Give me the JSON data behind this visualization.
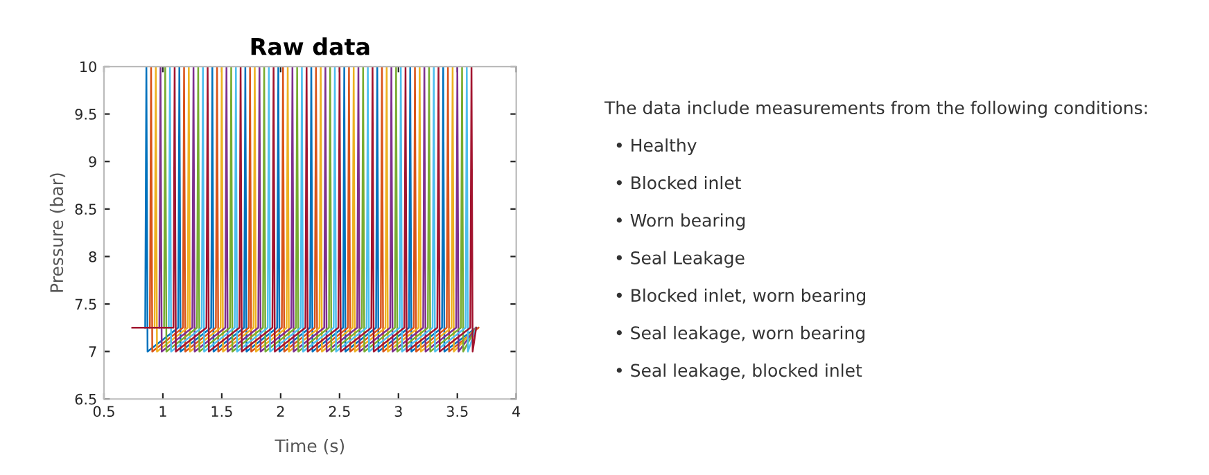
{
  "chart_data": {
    "type": "line",
    "title": "Raw data",
    "xlabel": "Time (s)",
    "ylabel": "Pressure (bar)",
    "xlim": [
      0.5,
      4
    ],
    "xticks": [
      0.5,
      1,
      1.5,
      2,
      2.5,
      3,
      3.5,
      4
    ],
    "ylim": [
      6.5,
      10
    ],
    "yticks": [
      6.5,
      7,
      7.5,
      8,
      8.5,
      9,
      9.5,
      10
    ],
    "grid": false,
    "legend": false,
    "series": [
      {
        "color": "#0072bd",
        "x": [
          0.85,
          0.86,
          0.87,
          1.13,
          1.14,
          1.15,
          1.41,
          1.42,
          1.43,
          1.69,
          1.7,
          1.71,
          1.97,
          1.98,
          1.99,
          2.25,
          2.26,
          2.27,
          2.53,
          2.54,
          2.55,
          2.81,
          2.82,
          2.83,
          3.09,
          3.1,
          3.11,
          3.37,
          3.38,
          3.39,
          3.66
        ],
        "values": [
          7.25,
          10,
          7.0,
          7.25,
          10,
          7.0,
          7.25,
          10,
          7.0,
          7.25,
          10,
          7.0,
          7.25,
          10,
          7.0,
          7.25,
          10,
          7.0,
          7.25,
          10,
          7.0,
          7.25,
          10,
          7.0,
          7.25,
          10,
          7.0,
          7.25,
          10,
          7.0,
          7.25
        ]
      },
      {
        "color": "#d95319",
        "x": [
          0.89,
          0.9,
          0.91,
          1.17,
          1.18,
          1.19,
          1.45,
          1.46,
          1.47,
          1.73,
          1.74,
          1.75,
          2.01,
          2.02,
          2.03,
          2.29,
          2.3,
          2.31,
          2.57,
          2.58,
          2.59,
          2.85,
          2.86,
          2.87,
          3.13,
          3.14,
          3.15,
          3.41,
          3.42,
          3.43,
          3.68
        ],
        "values": [
          7.25,
          10,
          7.0,
          7.25,
          10,
          7.0,
          7.25,
          10,
          7.0,
          7.25,
          10,
          7.0,
          7.25,
          10,
          7.0,
          7.25,
          10,
          7.0,
          7.25,
          10,
          7.0,
          7.25,
          10,
          7.0,
          7.25,
          10,
          7.0,
          7.25,
          10,
          7.0,
          7.25
        ]
      },
      {
        "color": "#edb120",
        "x": [
          0.93,
          0.94,
          0.95,
          1.21,
          1.22,
          1.23,
          1.49,
          1.5,
          1.51,
          1.77,
          1.78,
          1.79,
          2.05,
          2.06,
          2.07,
          2.33,
          2.34,
          2.35,
          2.61,
          2.62,
          2.63,
          2.89,
          2.9,
          2.91,
          3.17,
          3.18,
          3.19,
          3.45,
          3.46,
          3.47,
          3.66
        ],
        "values": [
          7.25,
          10,
          7.0,
          7.25,
          10,
          7.0,
          7.25,
          10,
          7.0,
          7.25,
          10,
          7.0,
          7.25,
          10,
          7.0,
          7.25,
          10,
          7.0,
          7.25,
          10,
          7.0,
          7.25,
          10,
          7.0,
          7.25,
          10,
          7.0,
          7.25,
          10,
          7.0,
          7.25
        ]
      },
      {
        "color": "#7e2f8e",
        "x": [
          0.97,
          0.98,
          0.99,
          1.25,
          1.26,
          1.27,
          1.53,
          1.54,
          1.55,
          1.81,
          1.82,
          1.83,
          2.09,
          2.1,
          2.11,
          2.37,
          2.38,
          2.39,
          2.65,
          2.66,
          2.67,
          2.93,
          2.94,
          2.95,
          3.21,
          3.22,
          3.23,
          3.49,
          3.5,
          3.51,
          3.66
        ],
        "values": [
          7.25,
          10,
          7.0,
          7.25,
          10,
          7.0,
          7.25,
          10,
          7.0,
          7.25,
          10,
          7.0,
          7.25,
          10,
          7.0,
          7.25,
          10,
          7.0,
          7.25,
          10,
          7.0,
          7.25,
          10,
          7.0,
          7.25,
          10,
          7.0,
          7.25,
          10,
          7.0,
          7.25
        ]
      },
      {
        "color": "#77ac30",
        "x": [
          1.01,
          1.02,
          1.03,
          1.29,
          1.3,
          1.31,
          1.57,
          1.58,
          1.59,
          1.85,
          1.86,
          1.87,
          2.13,
          2.14,
          2.15,
          2.41,
          2.42,
          2.43,
          2.69,
          2.7,
          2.71,
          2.97,
          2.98,
          2.99,
          3.25,
          3.26,
          3.27,
          3.53,
          3.54,
          3.55,
          3.66
        ],
        "values": [
          7.25,
          10,
          7.0,
          7.25,
          10,
          7.0,
          7.25,
          10,
          7.0,
          7.25,
          10,
          7.0,
          7.25,
          10,
          7.0,
          7.25,
          10,
          7.0,
          7.25,
          10,
          7.0,
          7.25,
          10,
          7.0,
          7.25,
          10,
          7.0,
          7.25,
          10,
          7.0,
          7.25
        ]
      },
      {
        "color": "#4dbeee",
        "x": [
          1.05,
          1.06,
          1.07,
          1.33,
          1.34,
          1.35,
          1.61,
          1.62,
          1.63,
          1.89,
          1.9,
          1.91,
          2.17,
          2.18,
          2.19,
          2.45,
          2.46,
          2.47,
          2.73,
          2.74,
          2.75,
          3.01,
          3.02,
          3.03,
          3.29,
          3.3,
          3.31,
          3.57,
          3.58,
          3.59,
          3.66
        ],
        "values": [
          7.25,
          10,
          7.0,
          7.25,
          10,
          7.0,
          7.25,
          10,
          7.0,
          7.25,
          10,
          7.0,
          7.25,
          10,
          7.0,
          7.25,
          10,
          7.0,
          7.25,
          10,
          7.0,
          7.25,
          10,
          7.0,
          7.25,
          10,
          7.0,
          7.25,
          10,
          7.0,
          7.25
        ]
      },
      {
        "color": "#a2142f",
        "x": [
          0.74,
          1.09,
          1.1,
          1.11,
          1.37,
          1.38,
          1.39,
          1.65,
          1.66,
          1.67,
          1.93,
          1.94,
          1.95,
          2.21,
          2.22,
          2.23,
          2.49,
          2.5,
          2.51,
          2.77,
          2.78,
          2.79,
          3.05,
          3.06,
          3.07,
          3.33,
          3.34,
          3.35,
          3.61,
          3.62,
          3.63,
          3.66
        ],
        "values": [
          7.25,
          7.25,
          10,
          7.0,
          7.25,
          10,
          7.0,
          7.25,
          10,
          7.0,
          7.25,
          10,
          7.0,
          7.25,
          10,
          7.0,
          7.25,
          10,
          7.0,
          7.25,
          10,
          7.0,
          7.25,
          10,
          7.0,
          7.25,
          10,
          7.0,
          7.25,
          10,
          7.0,
          7.25
        ]
      }
    ],
    "annotations": [
      "The data include measurements from the following conditions:",
      "• Healthy",
      "• Blocked inlet",
      "• Worn bearing",
      "• Seal Leakage",
      "• Blocked inlet, worn bearing",
      "• Seal leakage, worn bearing",
      "• Seal leakage, blocked inlet"
    ]
  }
}
